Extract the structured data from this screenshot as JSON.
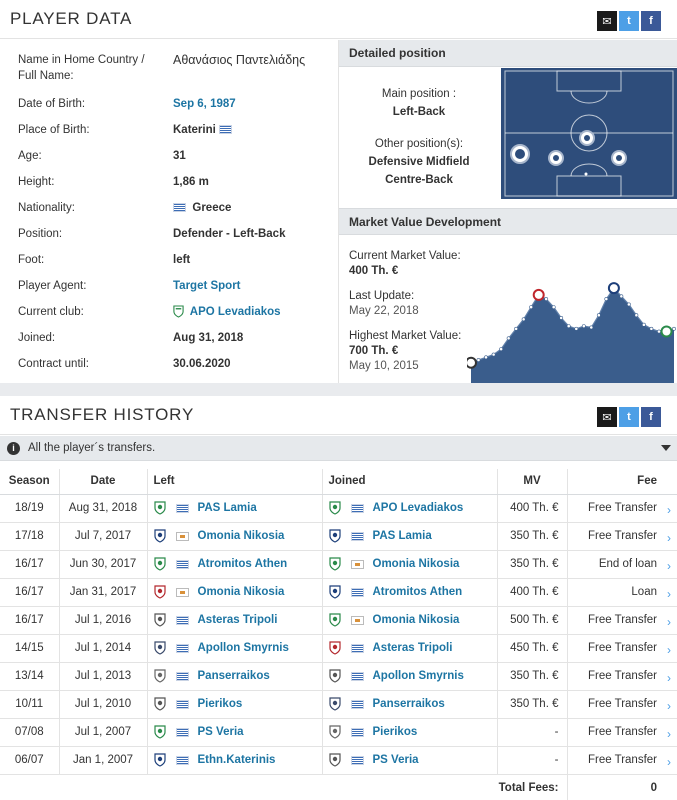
{
  "player": {
    "title": "PLAYER DATA",
    "rows": [
      {
        "label": "Name in Home Country / Full Name:",
        "value": "Αθανάσιος Παντελιάδης"
      },
      {
        "label": "Date of Birth:",
        "value": "Sep 6, 1987"
      },
      {
        "label": "Place of Birth:",
        "value": "Katerini"
      },
      {
        "label": "Age:",
        "value": "31"
      },
      {
        "label": "Height:",
        "value": "1,86 m"
      },
      {
        "label": "Nationality:",
        "value": "Greece"
      },
      {
        "label": "Position:",
        "value": "Defender - Left-Back"
      },
      {
        "label": "Foot:",
        "value": "left"
      },
      {
        "label": "Player Agent:",
        "value": "Target Sport"
      },
      {
        "label": "Current club:",
        "value": "APO Levadiakos"
      },
      {
        "label": "Joined:",
        "value": "Aug 31, 2018"
      },
      {
        "label": "Contract until:",
        "value": "30.06.2020"
      }
    ]
  },
  "position": {
    "title": "Detailed position",
    "main_label": "Main position :",
    "main_value": "Left-Back",
    "other_label": "Other position(s):",
    "other_values": [
      "Defensive Midfield",
      "Centre-Back"
    ]
  },
  "market_value": {
    "title": "Market Value Development",
    "current_label": "Current Market Value:",
    "current_value": "400 Th. €",
    "update_label": "Last Update:",
    "update_value": "May 22, 2018",
    "highest_label": "Highest Market Value:",
    "highest_value": "700 Th. €",
    "highest_date": "May 10, 2015"
  },
  "chart_data": {
    "type": "area",
    "color": "#3a5d8c",
    "values": [
      150,
      170,
      190,
      210,
      250,
      330,
      400,
      470,
      560,
      650,
      620,
      560,
      480,
      420,
      400,
      420,
      410,
      500,
      620,
      700,
      640,
      580,
      500,
      430,
      400,
      380,
      380,
      400
    ]
  },
  "transfers": {
    "title": "TRANSFER HISTORY",
    "banner": "All the player´s transfers.",
    "headers": {
      "season": "Season",
      "date": "Date",
      "left": "Left",
      "joined": "Joined",
      "mv": "MV",
      "fee": "Fee"
    },
    "rows": [
      {
        "season": "18/19",
        "date": "Aug 31, 2018",
        "left": "PAS Lamia",
        "left_flag": "gr",
        "joined": "APO Levadiakos",
        "joined_flag": "gr",
        "mv": "400 Th. €",
        "fee": "Free Transfer"
      },
      {
        "season": "17/18",
        "date": "Jul 7, 2017",
        "left": "Omonia Nikosia",
        "left_flag": "cy",
        "joined": "PAS Lamia",
        "joined_flag": "gr",
        "mv": "350 Th. €",
        "fee": "Free Transfer"
      },
      {
        "season": "16/17",
        "date": "Jun 30, 2017",
        "left": "Atromitos Athen",
        "left_flag": "gr",
        "joined": "Omonia Nikosia",
        "joined_flag": "cy",
        "mv": "350 Th. €",
        "fee": "End of loan"
      },
      {
        "season": "16/17",
        "date": "Jan 31, 2017",
        "left": "Omonia Nikosia",
        "left_flag": "cy",
        "joined": "Atromitos Athen",
        "joined_flag": "gr",
        "mv": "400 Th. €",
        "fee": "Loan"
      },
      {
        "season": "16/17",
        "date": "Jul 1, 2016",
        "left": "Asteras Tripoli",
        "left_flag": "gr",
        "joined": "Omonia Nikosia",
        "joined_flag": "cy",
        "mv": "500 Th. €",
        "fee": "Free Transfer"
      },
      {
        "season": "14/15",
        "date": "Jul 1, 2014",
        "left": "Apollon Smyrnis",
        "left_flag": "gr",
        "joined": "Asteras Tripoli",
        "joined_flag": "gr",
        "mv": "450 Th. €",
        "fee": "Free Transfer"
      },
      {
        "season": "13/14",
        "date": "Jul 1, 2013",
        "left": "Panserraikos",
        "left_flag": "gr",
        "joined": "Apollon Smyrnis",
        "joined_flag": "gr",
        "mv": "350 Th. €",
        "fee": "Free Transfer"
      },
      {
        "season": "10/11",
        "date": "Jul 1, 2010",
        "left": "Pierikos",
        "left_flag": "gr",
        "joined": "Panserraikos",
        "joined_flag": "gr",
        "mv": "350 Th. €",
        "fee": "Free Transfer"
      },
      {
        "season": "07/08",
        "date": "Jul 1, 2007",
        "left": "PS Veria",
        "left_flag": "gr",
        "joined": "Pierikos",
        "joined_flag": "gr",
        "mv": "-",
        "fee": "Free Transfer"
      },
      {
        "season": "06/07",
        "date": "Jan 1, 2007",
        "left": "Ethn.Katerinis",
        "left_flag": "gr",
        "joined": "PS Veria",
        "joined_flag": "gr",
        "mv": "-",
        "fee": "Free Transfer"
      }
    ],
    "total_label": "Total Fees:",
    "total_value": "0"
  }
}
